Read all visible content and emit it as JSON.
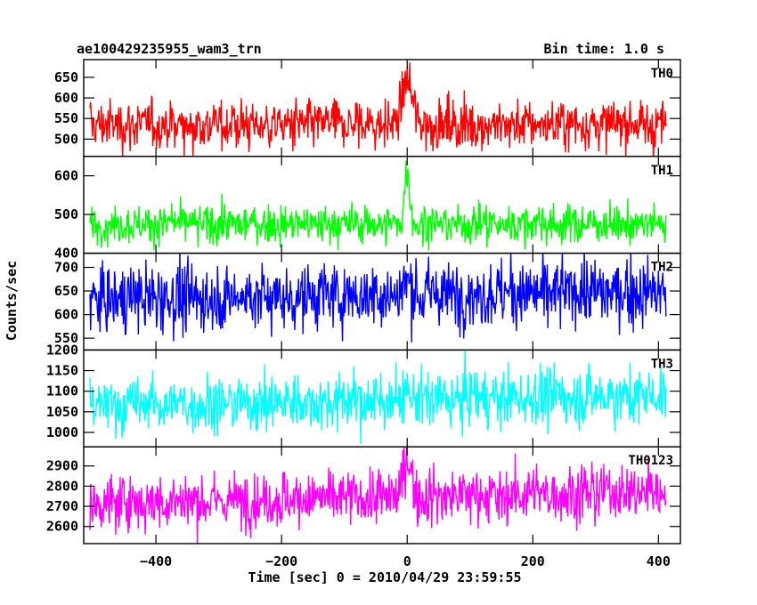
{
  "chart_data": {
    "type": "line",
    "title": "ae100429235955_wam3_trn",
    "bin_time_label": "Bin time: 1.0 s",
    "xlabel": "Time [sec] 0 = 2010/04/29 23:59:55",
    "ylabel": "Counts/sec",
    "xlim": [
      -515,
      435
    ],
    "x_ticks": [
      -400,
      -200,
      0,
      200,
      400
    ],
    "x_tick_labels": [
      "−400",
      "−200",
      "0",
      "200",
      "400"
    ],
    "x_range": [
      -505,
      412
    ],
    "grid": false,
    "panels": [
      {
        "name": "TH0",
        "color": "#ff0000",
        "ylim": [
          458,
          693
        ],
        "yticks": [
          500,
          550,
          600,
          650
        ],
        "baseline": 535,
        "noise": 30,
        "burst_peak": 660,
        "burst_width": 8,
        "trend": 0
      },
      {
        "name": "TH1",
        "color": "#00ff00",
        "ylim": [
          400,
          650
        ],
        "yticks": [
          400,
          500,
          600
        ],
        "baseline": 475,
        "noise": 25,
        "burst_peak": 645,
        "burst_width": 4,
        "trend": 0
      },
      {
        "name": "TH2",
        "color": "#0000ff",
        "ylim": [
          525,
          730
        ],
        "yticks": [
          550,
          600,
          650,
          700
        ],
        "baseline": 633,
        "noise": 35,
        "burst_peak": 670,
        "burst_width": 5,
        "trend": 15
      },
      {
        "name": "TH3",
        "color": "#00ffff",
        "ylim": [
          965,
          1200
        ],
        "yticks": [
          1000,
          1050,
          1100,
          1150,
          1200
        ],
        "baseline": 1065,
        "noise": 35,
        "burst_peak": 1075,
        "burst_width": 5,
        "trend": 25
      },
      {
        "name": "TH0123",
        "color": "#ff00ff",
        "ylim": [
          2515,
          2995
        ],
        "yticks": [
          2600,
          2700,
          2800,
          2900
        ],
        "baseline": 2715,
        "noise": 70,
        "burst_peak": 2960,
        "burst_width": 6,
        "trend": 60
      }
    ]
  }
}
